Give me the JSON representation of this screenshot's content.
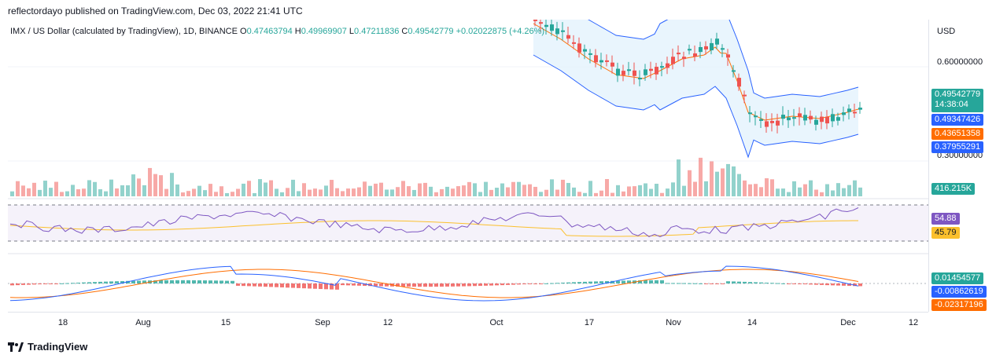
{
  "header": "reflectordayo published on TradingView.com, Dec 03, 2022 21:41 UTC",
  "legend": {
    "symbol": "IMX / US Dollar (calculated by TradingView), 1D, BINANCE",
    "o_label": "O",
    "o": "0.47463794",
    "h_label": "H",
    "h": "0.49969907",
    "l_label": "L",
    "l": "0.47211836",
    "c_label": "C",
    "c": "0.49542779",
    "change": "+0.02022875 (+4.26%)"
  },
  "price_axis": {
    "currency": "USD",
    "labels": [
      "0.60000000",
      "0.30000000"
    ],
    "tags": {
      "price": "0.49542779",
      "countdown": "14:38:04",
      "upper_band": "0.49347426",
      "ma": "0.43651358",
      "lower_band": "0.37955291",
      "volume": "416.215K",
      "rsi": "54.88",
      "rsi_ma": "45.79",
      "hist": "0.01454577",
      "macd": "-0.00862619",
      "signal": "-0.02317196"
    }
  },
  "time_axis": [
    "18",
    "Aug",
    "15",
    "Sep",
    "12",
    "Oct",
    "17",
    "Nov",
    "14",
    "Dec",
    "12"
  ],
  "footer": {
    "brand": "TradingView"
  },
  "colors": {
    "up": "#26a69a",
    "down": "#ef5350",
    "band": "#2962ff",
    "ma": "#ff6d00",
    "rsi": "#7e57c2",
    "rsi_ma": "#fbc02d",
    "macd": "#2962ff",
    "signal": "#ff6d00"
  }
}
